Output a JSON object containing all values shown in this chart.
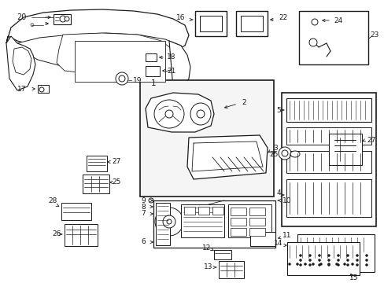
{
  "bg": "#ffffff",
  "lc": "#1a1a1a",
  "gc": "#e0e0e0",
  "figsize": [
    4.89,
    3.6
  ],
  "dpi": 100,
  "xlim": [
    0,
    489
  ],
  "ylim": [
    0,
    360
  ]
}
